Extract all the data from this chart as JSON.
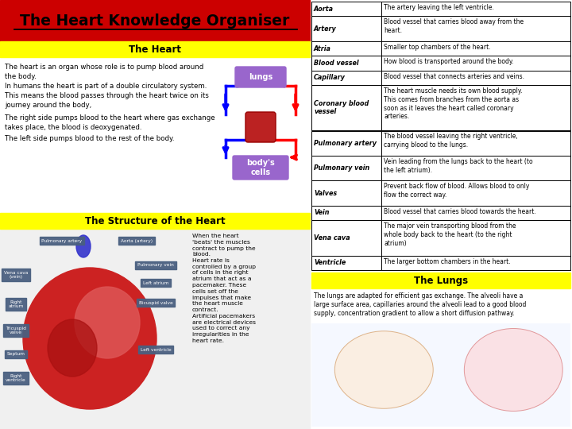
{
  "title": "The Heart Knowledge Organiser",
  "title_bg": "#cc0000",
  "yellow_bg": "#ffff00",
  "white_bg": "#ffffff",
  "section1_title": "The Heart",
  "section1_text1": "The heart is an organ whose role is to pump blood around\nthe body.",
  "section1_text2": "In humans the heart is part of a double circulatory system.\nThis means the blood passes through the heart twice on its\njourney around the body,",
  "section1_text3": "The right side pumps blood to the heart where gas exchange\ntakes place, the blood is deoxygenated.",
  "section1_text4": "The left side pumps blood to the rest of the body.",
  "section2_title": "The Structure of the Heart",
  "section2_text": "When the heart\n'beats' the muscles\ncontract to pump the\nblood.\nHeart rate is\ncontrolled by a group\nof cells in the right\natrium that act as a\npacemaker. These\ncells set off the\nimpulses that make\nthe heart muscle\ncontract.\nArtificial pacemakers\nare electrical devices\nused to correct any\nirregularities in the\nheart rate.",
  "section3_title": "The Lungs",
  "section3_text": "The lungs are adapted for efficient gas exchange. The alveoli have a\nlarge surface area, capillaries around the alveoli lead to a good blood\nsupply, concentration gradient to allow a short diffusion pathway.",
  "glossary": [
    [
      "Aorta",
      "The artery leaving the left ventricle."
    ],
    [
      "Artery",
      "Blood vessel that carries blood away from the\nheart."
    ],
    [
      "Atria",
      "Smaller top chambers of the heart."
    ],
    [
      "Blood vessel",
      "How blood is transported around the body."
    ],
    [
      "Capillary",
      "Blood vessel that connects arteries and veins."
    ],
    [
      "Coronary blood\nvessel",
      "The heart muscle needs its own blood supply.\nThis comes from branches from the aorta as\nsoon as it leaves the heart called coronary\narteries."
    ],
    [
      "Pulmonary artery",
      "The blood vessel leaving the right ventricle,\ncarrying blood to the lungs."
    ],
    [
      "Pulmonary vein",
      "Vein leading from the lungs back to the heart (to\nthe left atrium)."
    ],
    [
      "Valves",
      "Prevent back flow of blood. Allows blood to only\nflow the correct way."
    ],
    [
      "Vein",
      "Blood vessel that carries blood towards the heart."
    ],
    [
      "Vena cava",
      "The major vein transporting blood from the\nwhole body back to the heart (to the right\natrium)"
    ],
    [
      "Ventricle",
      "The larger bottom chambers in the heart."
    ]
  ]
}
